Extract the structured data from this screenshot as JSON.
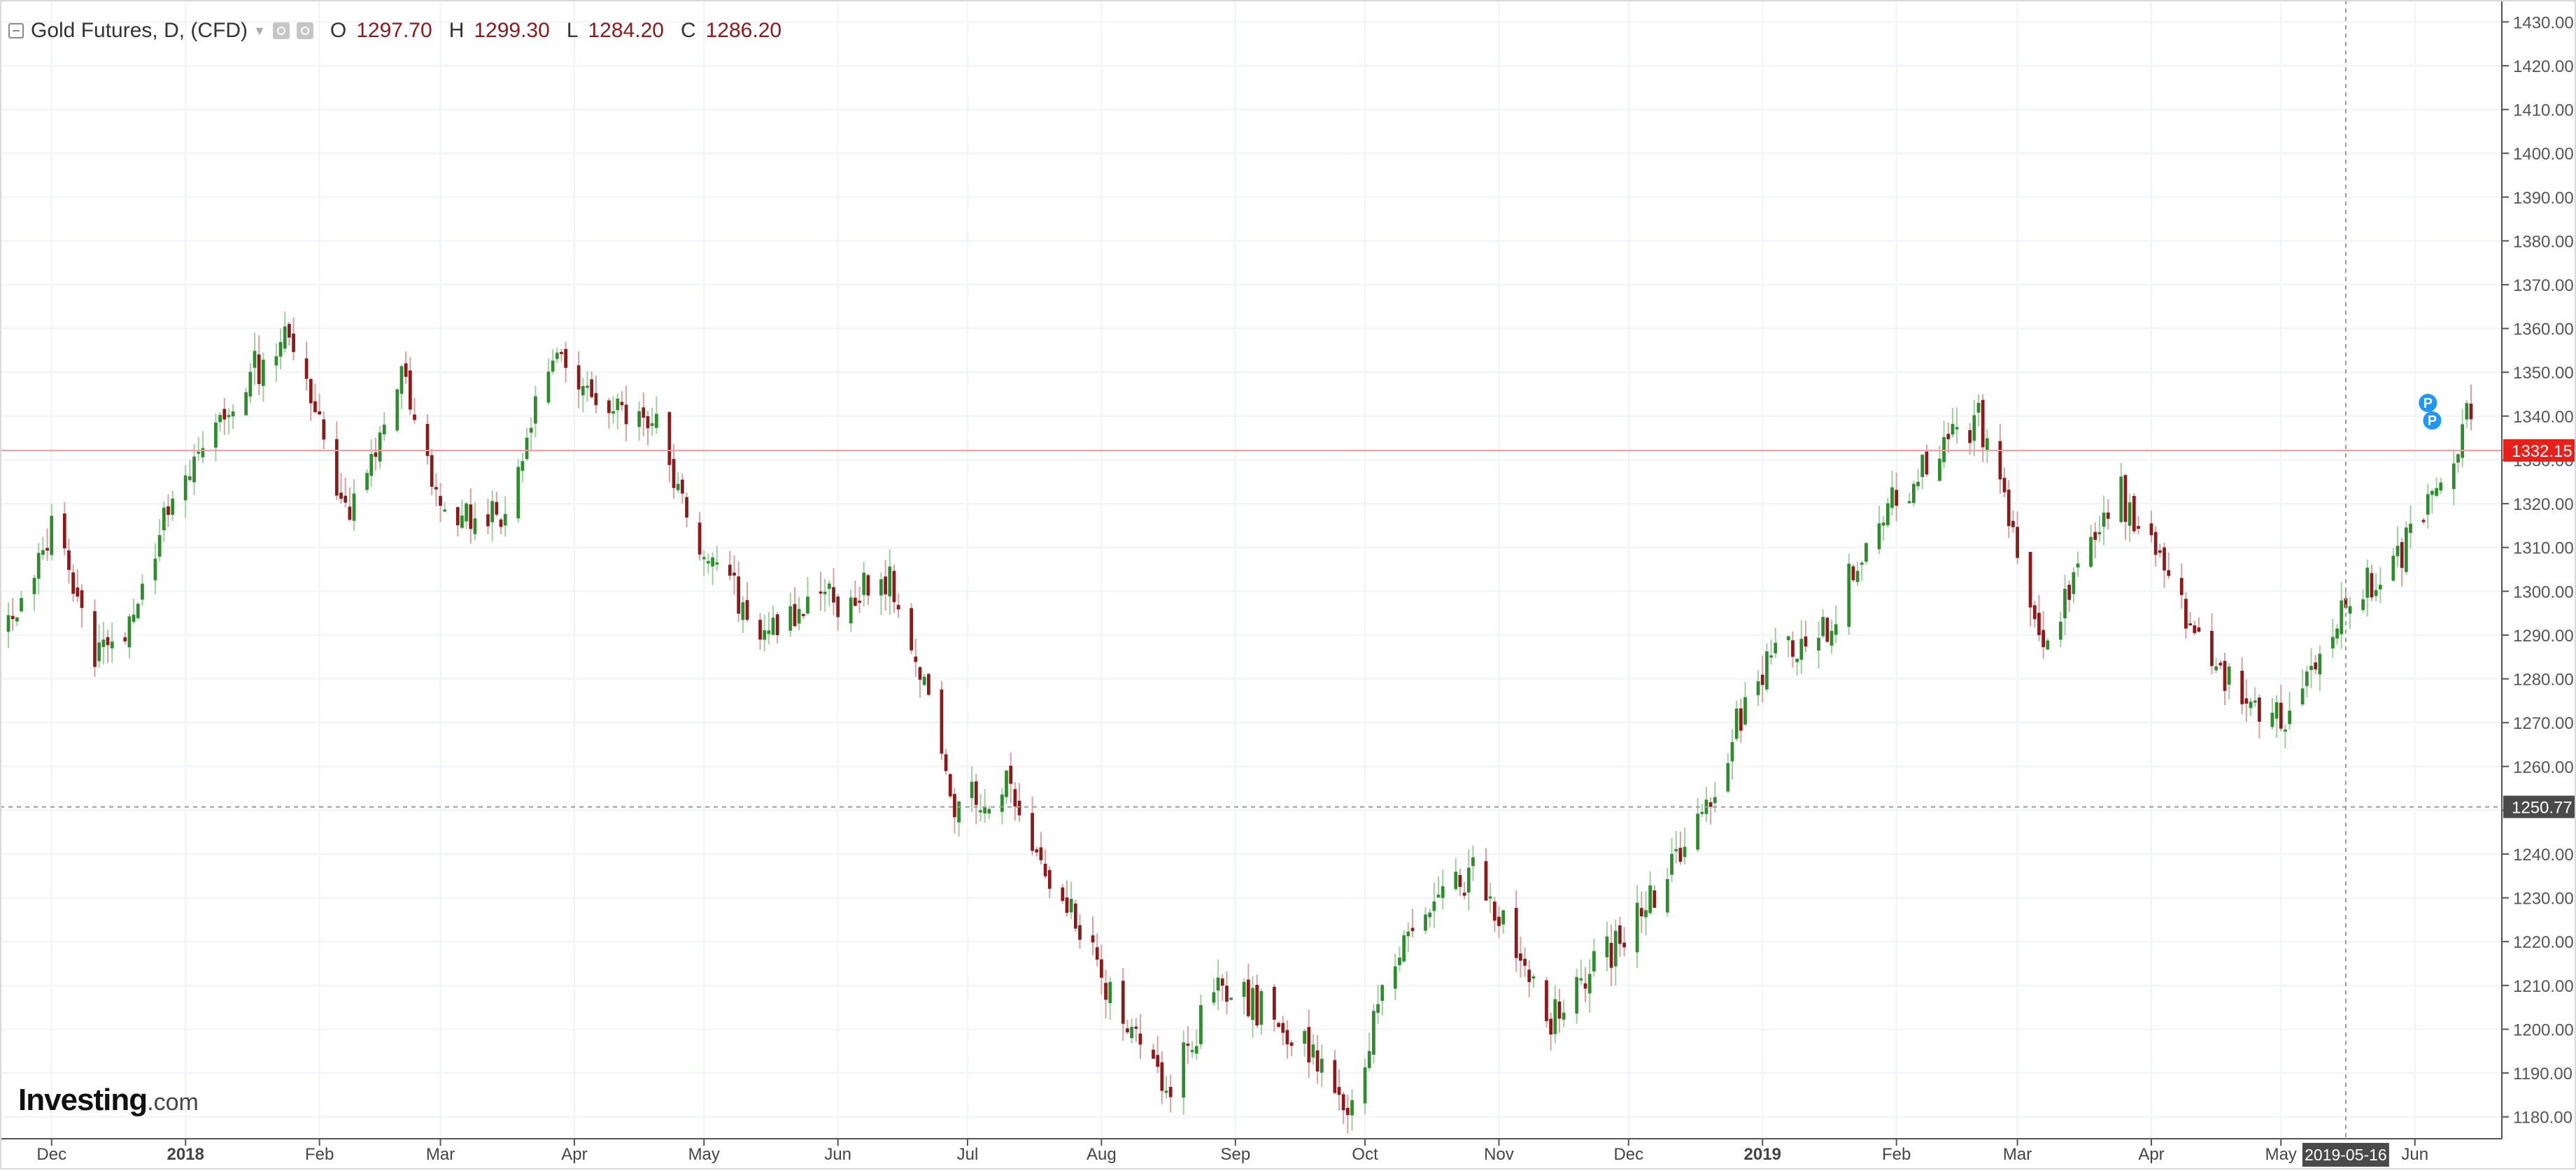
{
  "legend": {
    "title": "Gold Futures, D, (CFD)",
    "open_label": "O",
    "open": "1297.70",
    "high_label": "H",
    "high": "1299.30",
    "low_label": "L",
    "low": "1284.20",
    "close_label": "C",
    "close": "1286.20"
  },
  "logo": {
    "text": "Investing",
    "suffix": ".com"
  },
  "crosshair": {
    "date": "2019-05-16",
    "price": "1250.77"
  },
  "last_price": "1332.15",
  "colors": {
    "up": "#2e8b2e",
    "down": "#8b1a1a",
    "last_price_line": "#ff9a9a",
    "last_price_badge": "#e8201a",
    "crosshair_badge": "#4a4a4a",
    "marker": "#2196f3"
  },
  "chart_data": {
    "type": "candlestick",
    "title": "Gold Futures, D, (CFD)",
    "xlabel": "",
    "ylabel": "",
    "ylim": [
      1175,
      1435
    ],
    "y_ticks": [
      1180,
      1190,
      1200,
      1210,
      1220,
      1230,
      1240,
      1250,
      1260,
      1270,
      1280,
      1290,
      1300,
      1310,
      1320,
      1330,
      1340,
      1350,
      1360,
      1370,
      1380,
      1390,
      1400,
      1410,
      1420,
      1430
    ],
    "x_ticks": [
      {
        "label": "Dec",
        "date": "2017-12-01"
      },
      {
        "label": "2018",
        "date": "2018-01-01",
        "bold": true
      },
      {
        "label": "Feb",
        "date": "2018-02-01"
      },
      {
        "label": "Mar",
        "date": "2018-03-01"
      },
      {
        "label": "Apr",
        "date": "2018-04-01"
      },
      {
        "label": "May",
        "date": "2018-05-01"
      },
      {
        "label": "Jun",
        "date": "2018-06-01"
      },
      {
        "label": "Jul",
        "date": "2018-07-01"
      },
      {
        "label": "Aug",
        "date": "2018-08-01"
      },
      {
        "label": "Sep",
        "date": "2018-09-01"
      },
      {
        "label": "Oct",
        "date": "2018-10-01"
      },
      {
        "label": "Nov",
        "date": "2018-11-01"
      },
      {
        "label": "Dec",
        "date": "2018-12-01"
      },
      {
        "label": "2019",
        "date": "2019-01-01",
        "bold": true
      },
      {
        "label": "Feb",
        "date": "2019-02-01"
      },
      {
        "label": "Mar",
        "date": "2019-03-01"
      },
      {
        "label": "Apr",
        "date": "2019-04-01"
      },
      {
        "label": "May",
        "date": "2019-05-01"
      },
      {
        "label": "Jun",
        "date": "2019-06-01"
      }
    ],
    "x_range": [
      "2017-11-21",
      "2019-06-14"
    ],
    "anchors": [
      {
        "date": "2017-11-21",
        "price": 1292
      },
      {
        "date": "2017-12-01",
        "price": 1315
      },
      {
        "date": "2017-12-11",
        "price": 1284
      },
      {
        "date": "2017-12-21",
        "price": 1296
      },
      {
        "date": "2017-12-29",
        "price": 1324
      },
      {
        "date": "2018-01-10",
        "price": 1342
      },
      {
        "date": "2018-01-25",
        "price": 1360
      },
      {
        "date": "2018-02-08",
        "price": 1315
      },
      {
        "date": "2018-02-20",
        "price": 1350
      },
      {
        "date": "2018-03-01",
        "price": 1318
      },
      {
        "date": "2018-03-15",
        "price": 1316
      },
      {
        "date": "2018-03-26",
        "price": 1352
      },
      {
        "date": "2018-04-10",
        "price": 1344
      },
      {
        "date": "2018-04-20",
        "price": 1338
      },
      {
        "date": "2018-05-01",
        "price": 1308
      },
      {
        "date": "2018-05-15",
        "price": 1291
      },
      {
        "date": "2018-05-31",
        "price": 1298
      },
      {
        "date": "2018-06-14",
        "price": 1302
      },
      {
        "date": "2018-06-28",
        "price": 1251
      },
      {
        "date": "2018-07-10",
        "price": 1255
      },
      {
        "date": "2018-07-26",
        "price": 1224
      },
      {
        "date": "2018-08-15",
        "price": 1185
      },
      {
        "date": "2018-08-28",
        "price": 1210
      },
      {
        "date": "2018-09-12",
        "price": 1202
      },
      {
        "date": "2018-09-27",
        "price": 1184
      },
      {
        "date": "2018-10-11",
        "price": 1224
      },
      {
        "date": "2018-10-26",
        "price": 1236
      },
      {
        "date": "2018-11-13",
        "price": 1202
      },
      {
        "date": "2018-11-30",
        "price": 1222
      },
      {
        "date": "2018-12-14",
        "price": 1240
      },
      {
        "date": "2018-12-31",
        "price": 1282
      },
      {
        "date": "2019-01-15",
        "price": 1291
      },
      {
        "date": "2019-01-31",
        "price": 1320
      },
      {
        "date": "2019-02-20",
        "price": 1340
      },
      {
        "date": "2019-03-07",
        "price": 1287
      },
      {
        "date": "2019-03-25",
        "price": 1322
      },
      {
        "date": "2019-04-08",
        "price": 1296
      },
      {
        "date": "2019-04-23",
        "price": 1274
      },
      {
        "date": "2019-05-02",
        "price": 1271
      },
      {
        "date": "2019-05-16",
        "price": 1297
      },
      {
        "date": "2019-05-31",
        "price": 1311
      },
      {
        "date": "2019-06-14",
        "price": 1341
      }
    ],
    "last_price": 1332.15,
    "markers": [
      {
        "label": "P",
        "date": "2019-06-04",
        "price": 1343
      },
      {
        "label": "P",
        "date": "2019-06-05",
        "price": 1339
      }
    ]
  }
}
